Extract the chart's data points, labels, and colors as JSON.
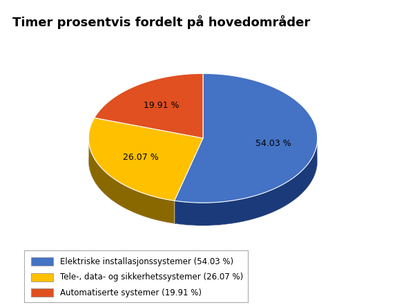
{
  "title": "Timer prosentvis fordelt på hovedområder",
  "slices": [
    54.03,
    26.07,
    19.91
  ],
  "labels": [
    "54.03 %",
    "26.07 %",
    "19.91 %"
  ],
  "colors": [
    "#4472C4",
    "#FFC000",
    "#E05020"
  ],
  "shadow_colors": [
    "#1a3a7a",
    "#8a6800",
    "#7a1a00"
  ],
  "legend_labels": [
    "Elektriske installasjonssystemer (54.03 %)",
    "Tele-, data- og sikkerhetssystemer (26.07 %)",
    "Automatiserte systemer (19.91 %)"
  ],
  "startangle": 90,
  "background_color": "#FFFFFF",
  "title_fontsize": 13,
  "label_fontsize": 9,
  "legend_fontsize": 8.5
}
